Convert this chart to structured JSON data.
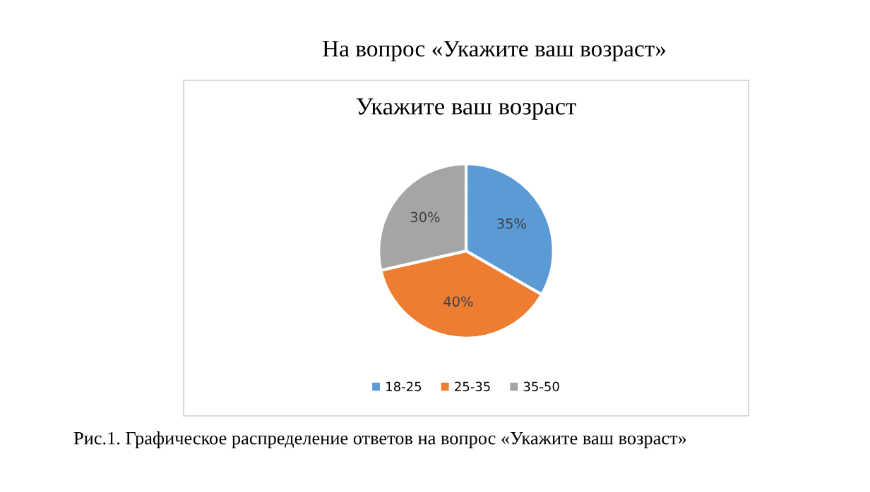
{
  "chart_data": {
    "type": "pie",
    "title": "Укажите ваш возраст",
    "annotations": [
      "На вопрос «Укажите ваш возраст»",
      "Рис.1. Графическое распределение ответов на вопрос «Укажите ваш возраст»"
    ],
    "categories": [
      "18-25",
      "25-35",
      "35-50"
    ],
    "values": [
      35,
      40,
      30
    ],
    "value_labels": [
      "35%",
      "40%",
      "30%"
    ],
    "colors": [
      "#5b9bd5",
      "#ed7d31",
      "#a5a5a5"
    ],
    "legend": "bottom"
  }
}
